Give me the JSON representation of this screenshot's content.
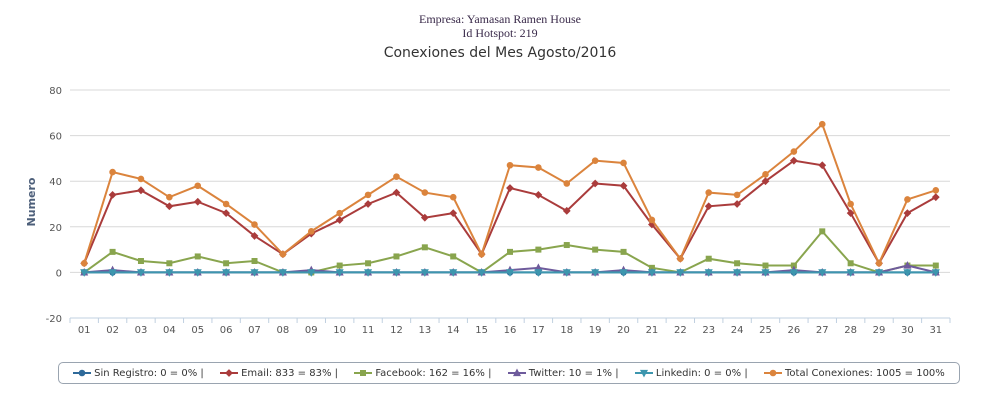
{
  "header": {
    "company": "Empresa: Yamasan Ramen House",
    "hotspot": "Id Hotspot: 219"
  },
  "chart_data": {
    "type": "line",
    "title": "Conexiones del Mes Agosto/2016",
    "ylabel": "Numero",
    "xlabel": "",
    "ylim": [
      -20,
      80
    ],
    "yticks": [
      -20,
      0,
      20,
      40,
      60,
      80
    ],
    "grid": true,
    "legend_position": "bottom",
    "categories": [
      "01",
      "02",
      "03",
      "04",
      "05",
      "06",
      "07",
      "08",
      "09",
      "10",
      "11",
      "12",
      "13",
      "14",
      "15",
      "16",
      "17",
      "18",
      "19",
      "20",
      "21",
      "22",
      "23",
      "24",
      "25",
      "26",
      "27",
      "28",
      "29",
      "30",
      "31"
    ],
    "series": [
      {
        "name": "Sin Registro",
        "legend": "Sin Registro: 0 = 0% |",
        "color": "#2f6a9a",
        "marker": "circle",
        "values": [
          0,
          0,
          0,
          0,
          0,
          0,
          0,
          0,
          0,
          0,
          0,
          0,
          0,
          0,
          0,
          0,
          0,
          0,
          0,
          0,
          0,
          0,
          0,
          0,
          0,
          0,
          0,
          0,
          0,
          0,
          0
        ]
      },
      {
        "name": "Email",
        "legend": "Email: 833 = 83% |",
        "color": "#aa3c3c",
        "marker": "diamond",
        "values": [
          4,
          34,
          36,
          29,
          31,
          26,
          16,
          8,
          17,
          23,
          30,
          35,
          24,
          26,
          8,
          37,
          34,
          27,
          39,
          38,
          21,
          6,
          29,
          30,
          40,
          49,
          47,
          26,
          4,
          26,
          33
        ]
      },
      {
        "name": "Facebook",
        "legend": "Facebook: 162 = 16% |",
        "color": "#89a54e",
        "marker": "square",
        "values": [
          0,
          9,
          5,
          4,
          7,
          4,
          5,
          0,
          0,
          3,
          4,
          7,
          11,
          7,
          0,
          9,
          10,
          12,
          10,
          9,
          2,
          0,
          6,
          4,
          3,
          3,
          18,
          4,
          0,
          3,
          3
        ]
      },
      {
        "name": "Twitter",
        "legend": "Twitter: 10 = 1% |",
        "color": "#6e5b9c",
        "marker": "triangle",
        "values": [
          0,
          1,
          0,
          0,
          0,
          0,
          0,
          0,
          1,
          0,
          0,
          0,
          0,
          0,
          0,
          1,
          2,
          0,
          0,
          1,
          0,
          0,
          0,
          0,
          0,
          1,
          0,
          0,
          0,
          3,
          0
        ]
      },
      {
        "name": "Linkedin",
        "legend": "Linkedin: 0 = 0% |",
        "color": "#3d96ae",
        "marker": "triangle-down",
        "values": [
          0,
          0,
          0,
          0,
          0,
          0,
          0,
          0,
          0,
          0,
          0,
          0,
          0,
          0,
          0,
          0,
          0,
          0,
          0,
          0,
          0,
          0,
          0,
          0,
          0,
          0,
          0,
          0,
          0,
          0,
          0
        ]
      },
      {
        "name": "Total Conexiones",
        "legend": "Total Conexiones: 1005 = 100%",
        "color": "#db843d",
        "marker": "circle",
        "values": [
          4,
          44,
          41,
          33,
          38,
          30,
          21,
          8,
          18,
          26,
          34,
          42,
          35,
          33,
          8,
          47,
          46,
          39,
          49,
          48,
          23,
          6,
          35,
          34,
          43,
          53,
          65,
          30,
          4,
          32,
          36
        ]
      }
    ]
  }
}
